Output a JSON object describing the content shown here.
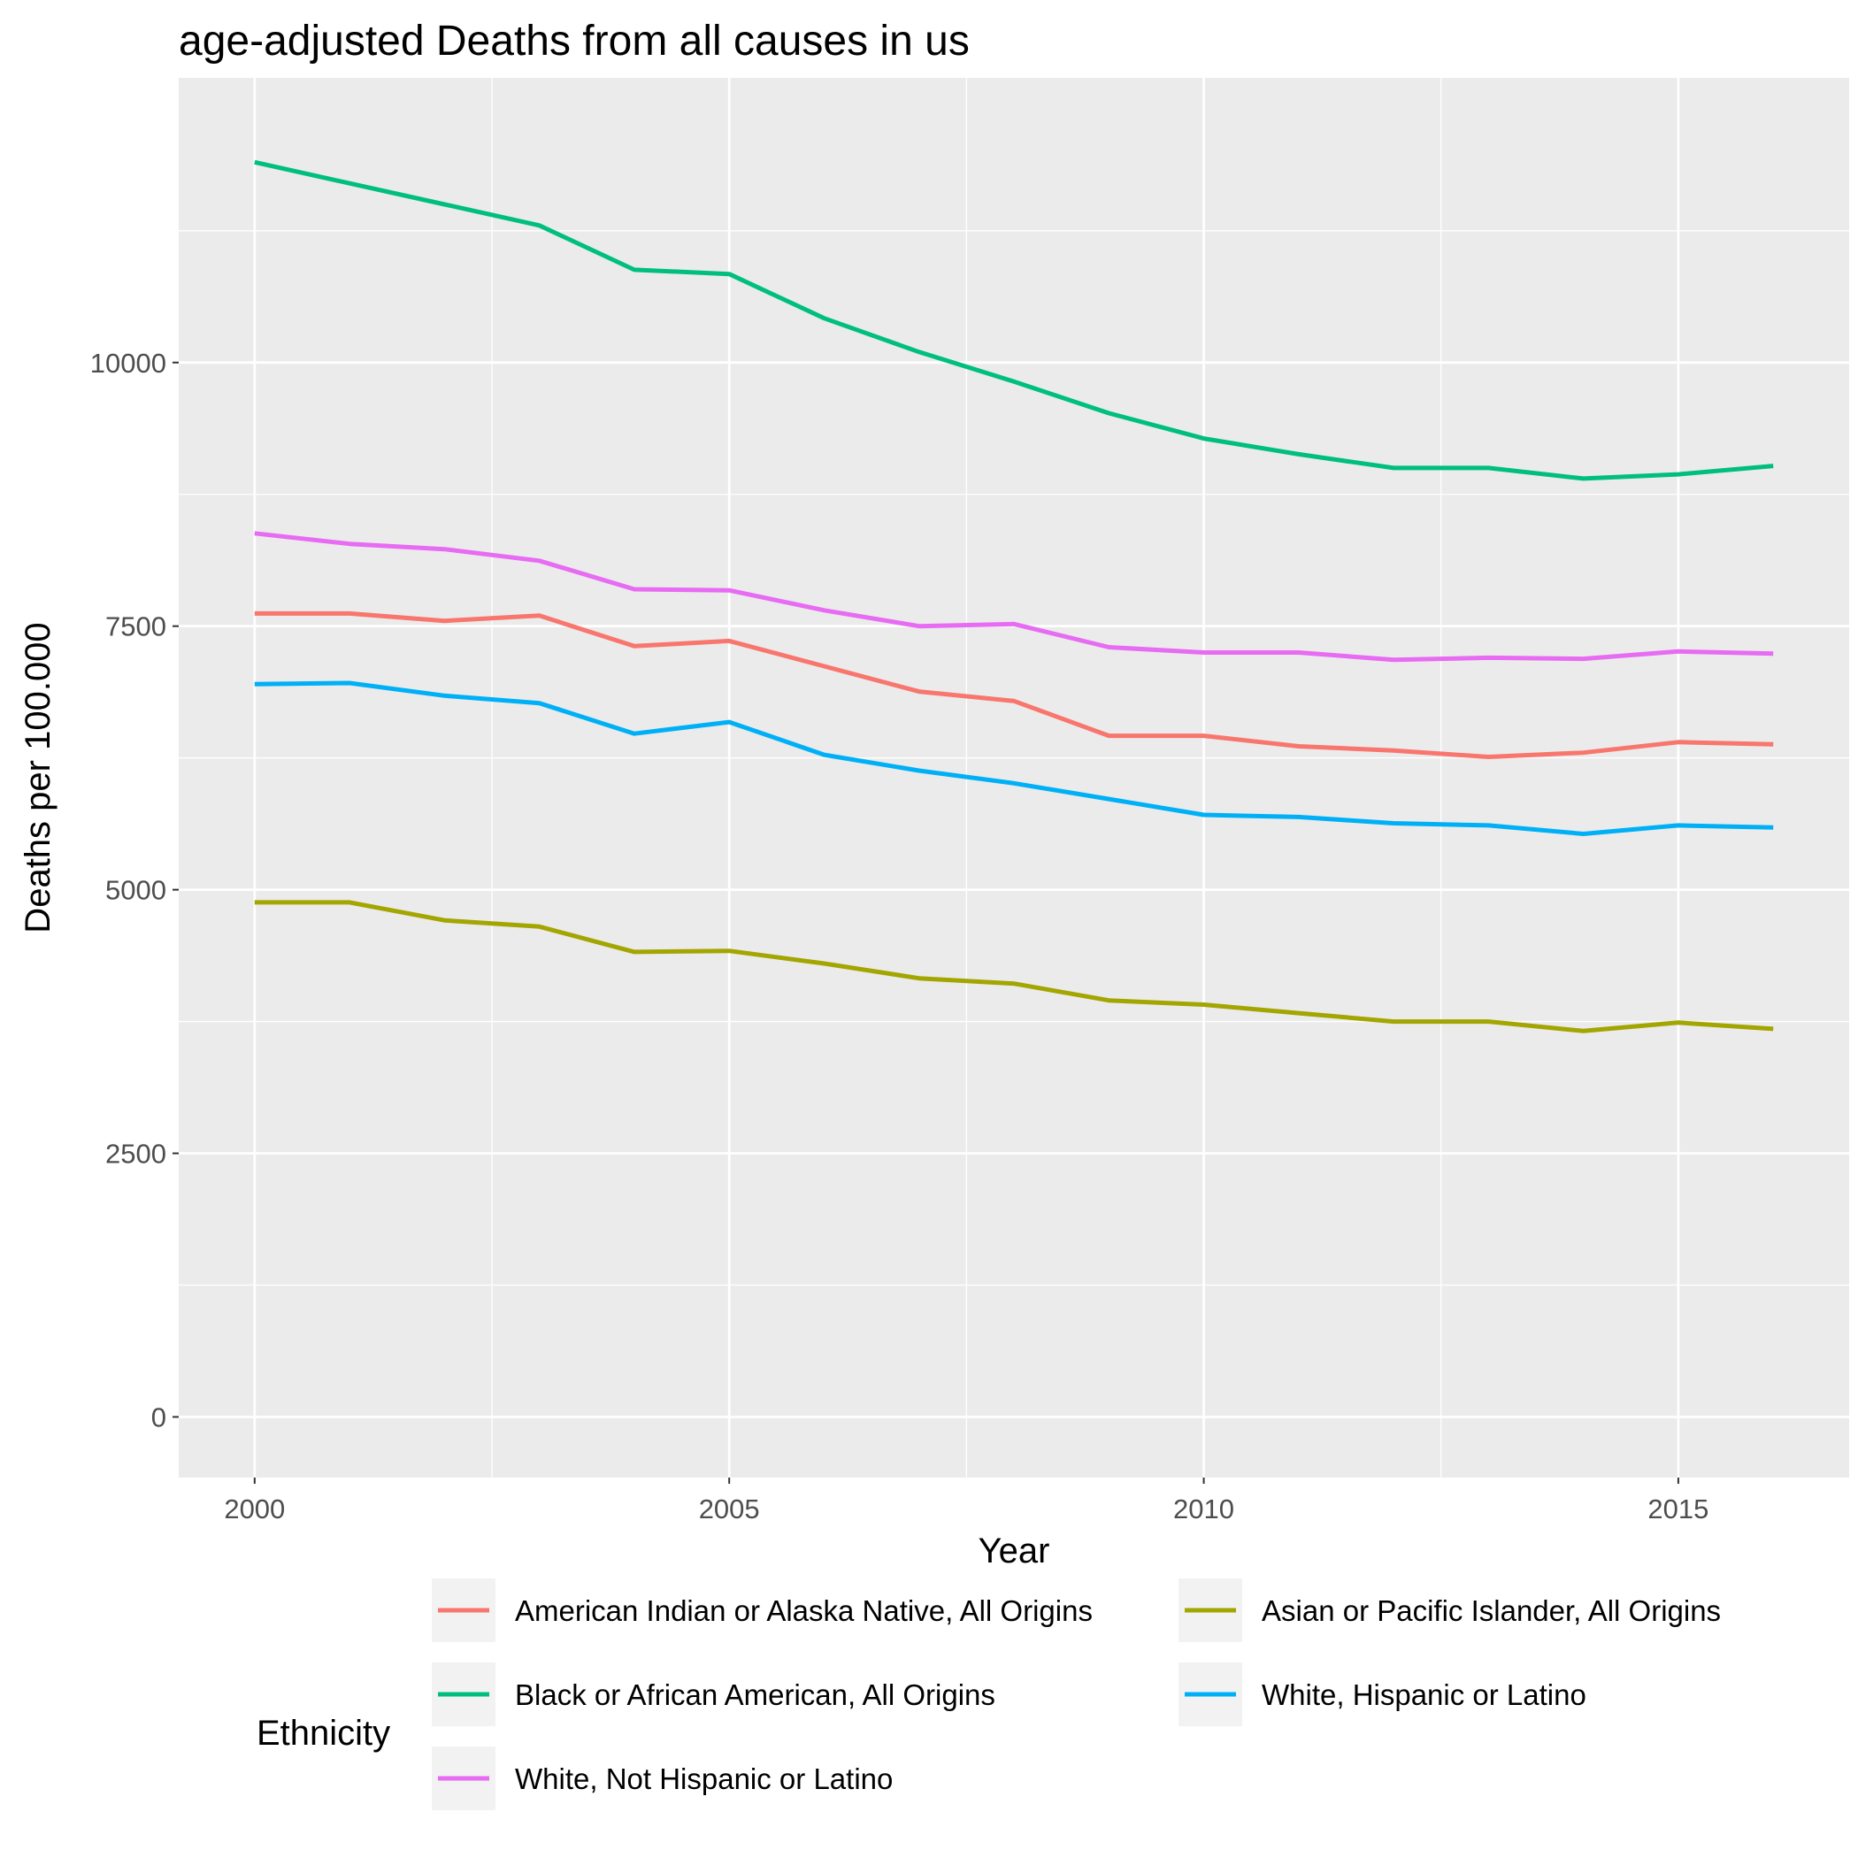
{
  "chart_data": {
    "type": "line",
    "title": "age-adjusted Deaths from all causes in us",
    "xlabel": "Year",
    "ylabel": "Deaths per 100.000",
    "xlim": [
      1999.2,
      2016.8
    ],
    "ylim": [
      -575,
      12700
    ],
    "x_ticks": [
      2000,
      2005,
      2010,
      2015
    ],
    "x_tick_labels": [
      "2000",
      "2005",
      "2010",
      "2015"
    ],
    "y_ticks": [
      0,
      2500,
      5000,
      7500,
      10000
    ],
    "y_tick_labels": [
      "0",
      "2500",
      "5000",
      "7500",
      "10000"
    ],
    "grid": true,
    "legend_title": "Ethnicity",
    "legend_position": "bottom",
    "x": [
      2000,
      2001,
      2002,
      2003,
      2004,
      2005,
      2006,
      2007,
      2008,
      2009,
      2010,
      2011,
      2012,
      2013,
      2014,
      2015,
      2016
    ],
    "series": [
      {
        "name": "American Indian or Alaska Native, All Origins",
        "color": "#F8766D",
        "values": [
          7620,
          7620,
          7550,
          7600,
          7310,
          7360,
          7120,
          6880,
          6790,
          6460,
          6460,
          6360,
          6320,
          6260,
          6300,
          6400,
          6380
        ]
      },
      {
        "name": "Asian or Pacific Islander, All Origins",
        "color": "#A3A500",
        "values": [
          4880,
          4880,
          4710,
          4650,
          4410,
          4420,
          4300,
          4160,
          4110,
          3950,
          3910,
          3830,
          3750,
          3750,
          3660,
          3740,
          3680
        ]
      },
      {
        "name": "Black or African American, All Origins",
        "color": "#00BF7D",
        "values": [
          11900,
          11700,
          11500,
          11300,
          10880,
          10840,
          10420,
          10100,
          9820,
          9520,
          9280,
          9130,
          9000,
          9000,
          8900,
          8940,
          9020
        ]
      },
      {
        "name": "White, Hispanic or Latino",
        "color": "#00B0F6",
        "values": [
          6950,
          6960,
          6840,
          6770,
          6480,
          6590,
          6280,
          6130,
          6010,
          5860,
          5710,
          5690,
          5630,
          5610,
          5530,
          5610,
          5590
        ]
      },
      {
        "name": "White, Not Hispanic or Latino",
        "color": "#E76BF3",
        "values": [
          8380,
          8280,
          8230,
          8120,
          7850,
          7840,
          7650,
          7500,
          7520,
          7300,
          7250,
          7250,
          7180,
          7200,
          7190,
          7260,
          7240
        ]
      }
    ]
  }
}
